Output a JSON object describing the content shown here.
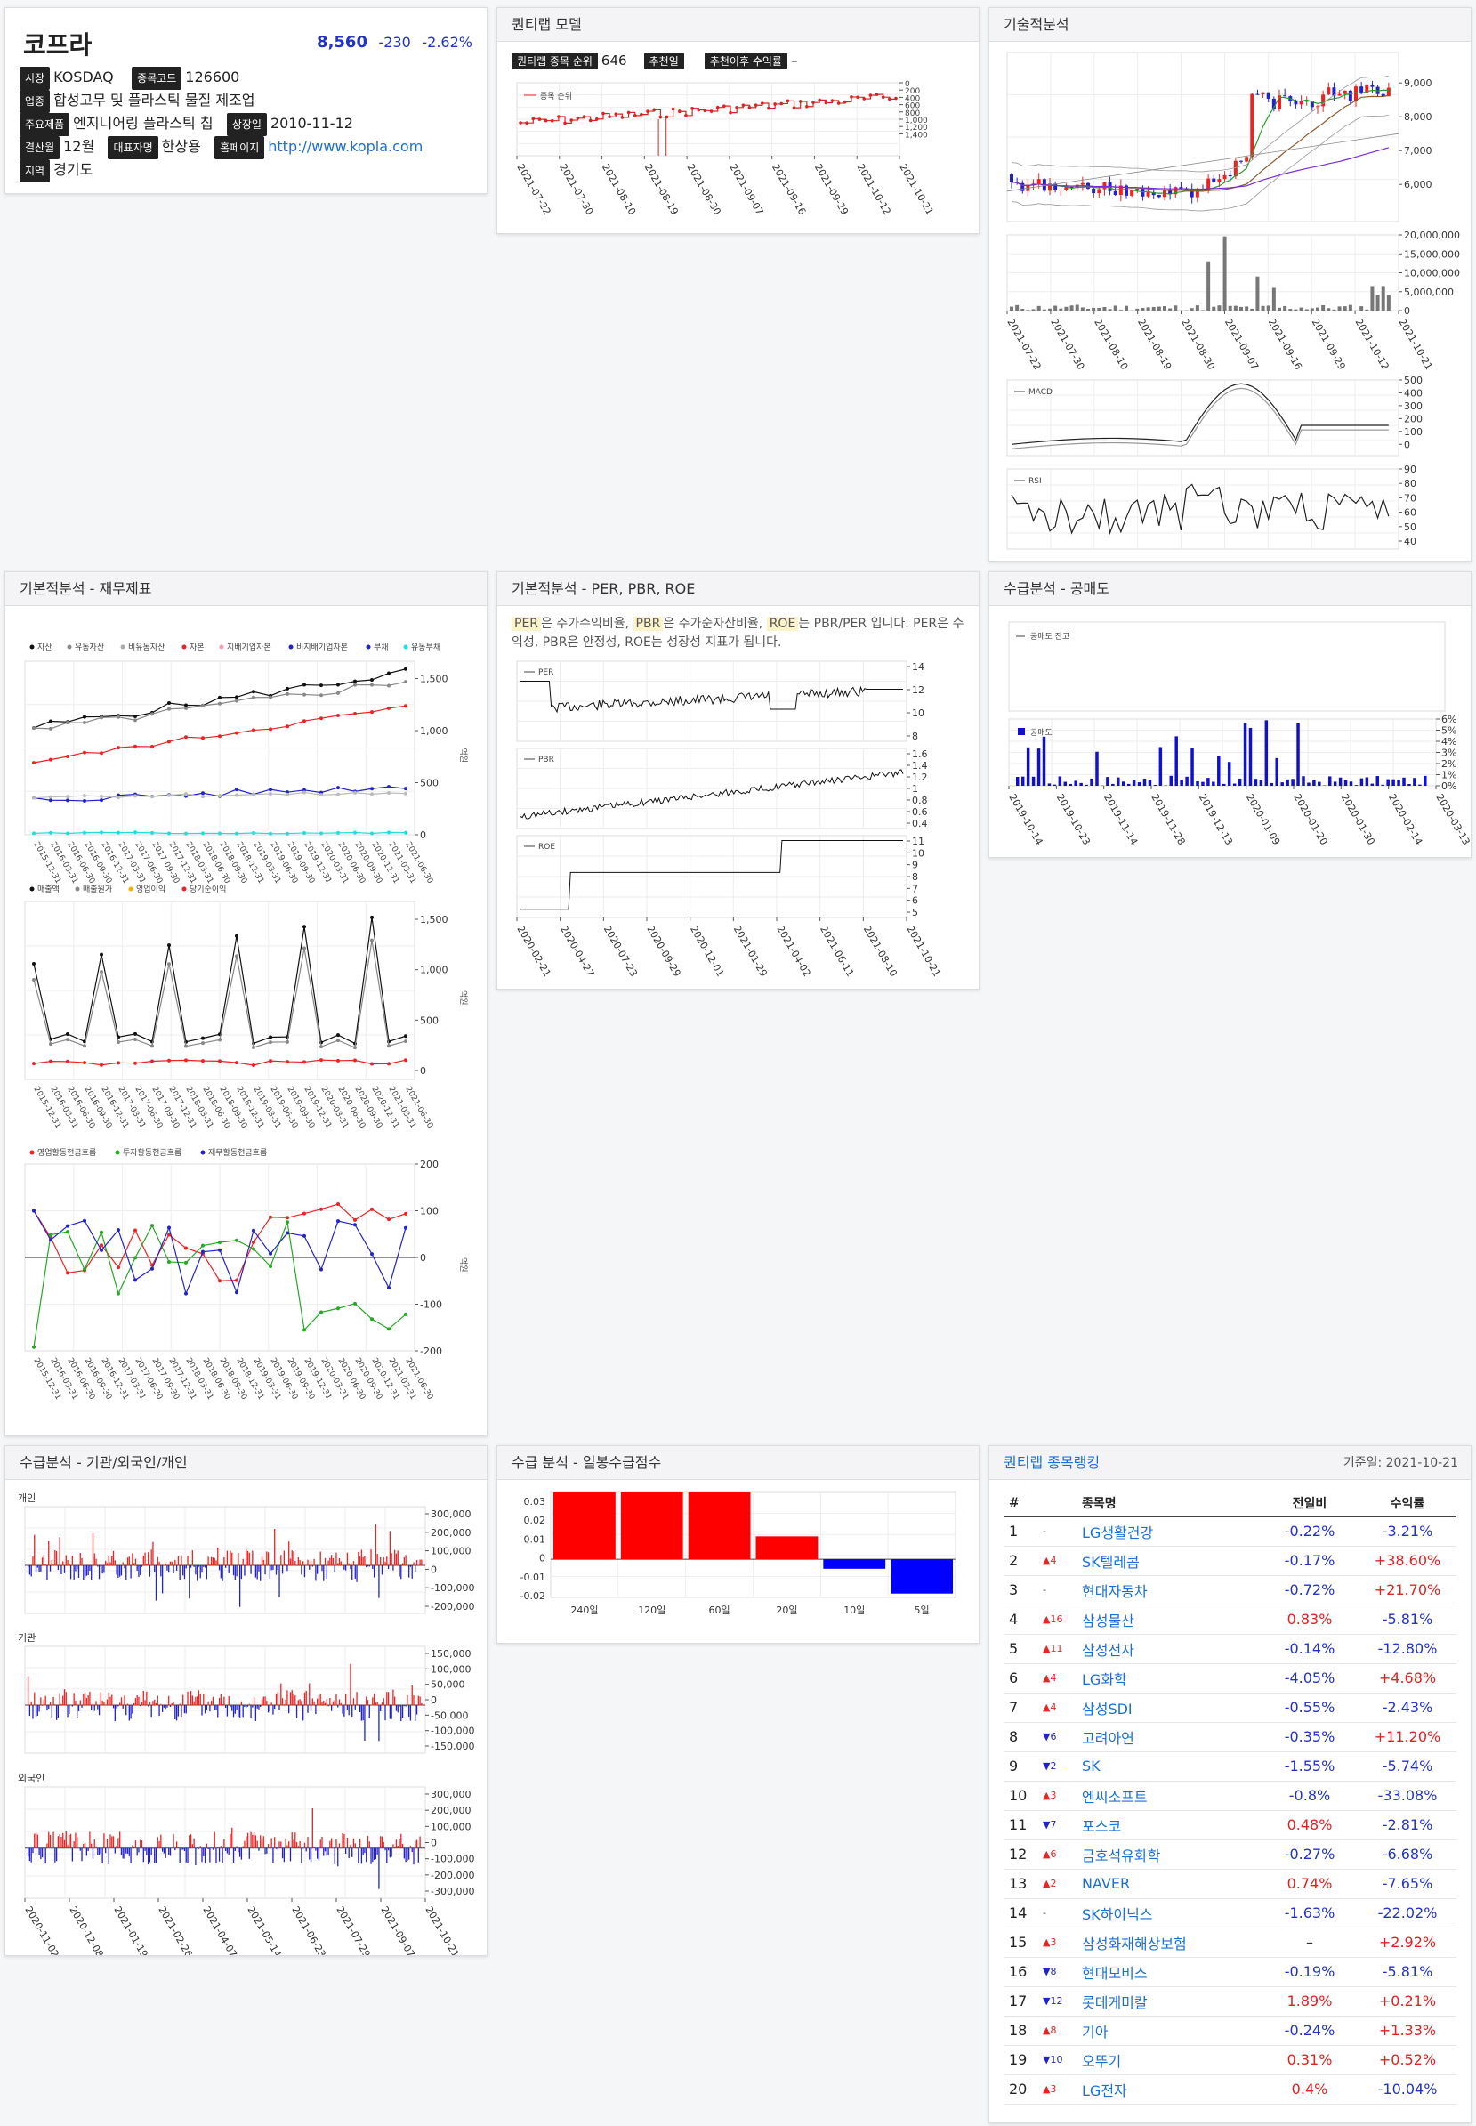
{
  "company": {
    "name": "코프라",
    "price": "8,560",
    "change": "-230",
    "pct": "-2.62%"
  },
  "info": {
    "market_l": "시장",
    "market": "KOSDAQ",
    "code_l": "종목코드",
    "code": "126600",
    "ind_l": "업종",
    "ind": "합성고무 및 플라스틱 물질 제조업",
    "prod_l": "주요제품",
    "prod": "엔지니어링 플라스틱 칩",
    "list_l": "상장일",
    "list": "2010-11-12",
    "fy_l": "결산월",
    "fy": "12월",
    "ceo_l": "대표자명",
    "ceo": "한상용",
    "hp_l": "홈페이지",
    "hp": "http://www.kopla.com",
    "reg_l": "지역",
    "reg": "경기도"
  },
  "model": {
    "title": "퀀티랩 모델",
    "rank_l": "퀀티랩 종목 순위",
    "rank": "646",
    "rec_l": "추천일",
    "ret_l": "추천이후 수익률",
    "ret": "–",
    "legend": "종목 순위",
    "yt": [
      "0",
      "200",
      "400",
      "600",
      "800",
      "1,000",
      "1,200",
      "1,400"
    ],
    "xt": [
      "2021-07-22",
      "2021-07-30",
      "2021-08-10",
      "2021-08-19",
      "2021-08-30",
      "2021-09-07",
      "2021-09-16",
      "2021-09-29",
      "2021-10-12",
      "2021-10-21"
    ]
  },
  "tech": {
    "title": "기술적분석",
    "pyt": [
      "9,000",
      "8,000",
      "7,000",
      "6,000"
    ],
    "vyt": [
      "20,000,000",
      "15,000,000",
      "10,000,000",
      "5,000,000",
      "0"
    ],
    "xt": [
      "2021-07-22",
      "2021-07-30",
      "2021-08-10",
      "2021-08-19",
      "2021-08-30",
      "2021-09-07",
      "2021-09-16",
      "2021-09-29",
      "2021-10-12",
      "2021-10-21"
    ],
    "macd_l": "MACD",
    "macd_yt": [
      "500",
      "400",
      "300",
      "200",
      "100",
      "0"
    ],
    "rsi_l": "RSI",
    "rsi_yt": [
      "90",
      "80",
      "70",
      "60",
      "50",
      "40"
    ]
  },
  "fin": {
    "title": "기본적분석 - 재무제표",
    "leg1": [
      "자산",
      "유동자산",
      "비유동자산",
      "자본",
      "지배기업자본",
      "비지배기업자본",
      "부채",
      "유동부채"
    ],
    "leg2": [
      "매출액",
      "매출원가",
      "영업이익",
      "당기순이익"
    ],
    "leg3": [
      "영업활동현금흐름",
      "투자활동현금흐름",
      "재무활동현금흐름"
    ],
    "unit": "억원",
    "y1": [
      "1,500",
      "1,000",
      "500",
      "0"
    ],
    "y2": [
      "1,500",
      "1,000",
      "500",
      "0"
    ],
    "y3": [
      "200",
      "100",
      "0",
      "-100",
      "-200"
    ],
    "xt": [
      "2015-12-31",
      "2016-03-31",
      "2016-06-30",
      "2016-09-30",
      "2016-12-31",
      "2017-03-31",
      "2017-06-30",
      "2017-09-30",
      "2017-12-31",
      "2018-03-31",
      "2018-06-30",
      "2018-09-30",
      "2018-12-31",
      "2019-03-31",
      "2019-06-30",
      "2019-09-30",
      "2019-12-31",
      "2020-03-31",
      "2020-06-30",
      "2020-09-30",
      "2020-12-31",
      "2021-03-31",
      "2021-06-30"
    ]
  },
  "per": {
    "title": "기본적분석 - PER, PBR, ROE",
    "t1": "PER",
    "t2": "은 주가수익비율, ",
    "t3": "PBR",
    "t4": "은 주가순자산비율, ",
    "t5": "ROE",
    "t6": "는 PBR/PER 입니다. PER은 수익성, PBR은 안정성, ROE는 성장성 지표가 됩니다.",
    "per_l": "PER",
    "per_yt": [
      "14",
      "12",
      "10",
      "8"
    ],
    "pbr_l": "PBR",
    "pbr_yt": [
      "1.6",
      "1.4",
      "1.2",
      "1",
      "0.8",
      "0.6",
      "0.4"
    ],
    "roe_l": "ROE",
    "roe_yt": [
      "11",
      "10",
      "9",
      "8",
      "7",
      "6",
      "5"
    ],
    "xt": [
      "2020-02-21",
      "2020-04-27",
      "2020-07-23",
      "2020-09-29",
      "2020-12-01",
      "2021-01-29",
      "2021-04-02",
      "2021-06-11",
      "2021-08-10",
      "2021-10-21"
    ]
  },
  "short": {
    "title": "수급분석 - 공매도",
    "l1": "공매도 잔고",
    "l2": "공매도",
    "yt": [
      "6%",
      "5%",
      "4%",
      "3%",
      "2%",
      "1%",
      "0%"
    ],
    "xt": [
      "2019-10-14",
      "2019-10-23",
      "2019-11-14",
      "2019-11-28",
      "2019-12-13",
      "2020-01-09",
      "2020-01-20",
      "2020-01-30",
      "2020-02-14",
      "2020-03-13"
    ]
  },
  "flow": {
    "title": "수급분석 - 기관/외국인/개인",
    "p1": "개인",
    "p1y": [
      "300,000",
      "200,000",
      "100,000",
      "0",
      "-100,000",
      "-200,000"
    ],
    "p2": "기관",
    "p2y": [
      "150,000",
      "100,000",
      "50,000",
      "0",
      "-50,000",
      "-100,000",
      "-150,000"
    ],
    "p3": "외국인",
    "p3y": [
      "300,000",
      "200,000",
      "100,000",
      "0",
      "-100,000",
      "-200,000",
      "-300,000"
    ],
    "xt": [
      "2020-11-02",
      "2020-12-08",
      "2021-01-19",
      "2021-02-26",
      "2021-04-07",
      "2021-05-14",
      "2021-06-23",
      "2021-07-29",
      "2021-09-07",
      "2021-10-21"
    ]
  },
  "score": {
    "title": "수급 분석 - 일봉수급점수",
    "yt": [
      "0.03",
      "0.02",
      "0.01",
      "0",
      "-0.01",
      "-0.02"
    ]
  },
  "chart_data": {
    "type": "bar",
    "categories": [
      "240일",
      "120일",
      "60일",
      "20일",
      "10일",
      "5일"
    ],
    "values": [
      0.035,
      0.035,
      0.035,
      0.012,
      -0.005,
      -0.018
    ],
    "ylim": [
      -0.02,
      0.035
    ]
  },
  "rank": {
    "title": "퀀티랩 종목랭킹",
    "date": "기준일: 2021-10-21",
    "h": [
      "#",
      "종목명",
      "전일비",
      "수익률"
    ],
    "rows": [
      [
        "1",
        "-",
        "LG생활건강",
        "-0.22%",
        "-3.21%"
      ],
      [
        "2",
        "▲4",
        "SK텔레콤",
        "-0.17%",
        "+38.60%"
      ],
      [
        "3",
        "-",
        "현대자동차",
        "-0.72%",
        "+21.70%"
      ],
      [
        "4",
        "▲16",
        "삼성물산",
        "0.83%",
        "-5.81%"
      ],
      [
        "5",
        "▲11",
        "삼성전자",
        "-0.14%",
        "-12.80%"
      ],
      [
        "6",
        "▲4",
        "LG화학",
        "-4.05%",
        "+4.68%"
      ],
      [
        "7",
        "▲4",
        "삼성SDI",
        "-0.55%",
        "-2.43%"
      ],
      [
        "8",
        "▼6",
        "고려아연",
        "-0.35%",
        "+11.20%"
      ],
      [
        "9",
        "▼2",
        "SK",
        "-1.55%",
        "-5.74%"
      ],
      [
        "10",
        "▲3",
        "엔씨소프트",
        "-0.8%",
        "-33.08%"
      ],
      [
        "11",
        "▼7",
        "포스코",
        "0.48%",
        "-2.81%"
      ],
      [
        "12",
        "▲6",
        "금호석유화학",
        "-0.27%",
        "-6.68%"
      ],
      [
        "13",
        "▲2",
        "NAVER",
        "0.74%",
        "-7.65%"
      ],
      [
        "14",
        "-",
        "SK하이닉스",
        "-1.63%",
        "-22.02%"
      ],
      [
        "15",
        "▲3",
        "삼성화재해상보험",
        "–",
        "+2.92%"
      ],
      [
        "16",
        "▼8",
        "현대모비스",
        "-0.19%",
        "-5.81%"
      ],
      [
        "17",
        "▼12",
        "롯데케미칼",
        "1.89%",
        "+0.21%"
      ],
      [
        "18",
        "▲8",
        "기아",
        "-0.24%",
        "+1.33%"
      ],
      [
        "19",
        "▼10",
        "오뚜기",
        "0.31%",
        "+0.52%"
      ],
      [
        "20",
        "▲3",
        "LG전자",
        "0.4%",
        "-10.04%"
      ]
    ]
  }
}
